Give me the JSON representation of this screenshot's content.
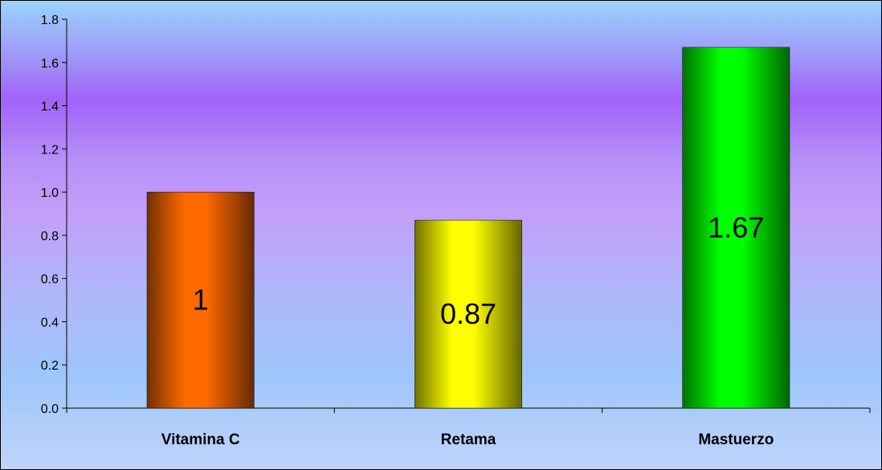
{
  "chart_data": {
    "type": "bar",
    "title": "",
    "xlabel": "",
    "ylabel": "",
    "categories": [
      "Vitamina C",
      "Retama",
      "Mastuerzo"
    ],
    "values": [
      1.0,
      0.87,
      1.67
    ],
    "data_labels": [
      "1",
      "0.87",
      "1.67"
    ],
    "bar_colors": [
      "#ff6a00",
      "#ffff00",
      "#00ff00"
    ],
    "ylim": [
      0,
      1.8
    ],
    "y_ticks": [
      "0.0",
      "0.2",
      "0.4",
      "0.6",
      "0.8",
      "1.0",
      "1.2",
      "1.4",
      "1.6",
      "1.8"
    ],
    "grid": false,
    "legend": "none"
  }
}
